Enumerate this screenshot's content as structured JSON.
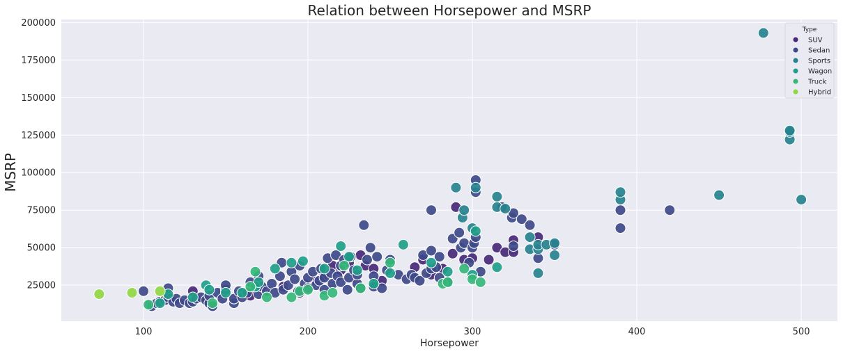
{
  "chart_data": {
    "type": "scatter",
    "title": "Relation between Horsepower and MSRP",
    "xlabel": "Horsepower",
    "ylabel": "MSRP",
    "xlim": [
      50,
      522
    ],
    "ylim": [
      1000,
      202000
    ],
    "x_ticks": [
      100,
      200,
      300,
      400,
      500
    ],
    "y_ticks": [
      25000,
      50000,
      75000,
      100000,
      125000,
      150000,
      175000,
      200000
    ],
    "grid": true,
    "legend": {
      "title": "Type",
      "placement": "top-right",
      "entries": [
        "SUV",
        "Sedan",
        "Sports",
        "Wagon",
        "Truck",
        "Hybrid"
      ]
    },
    "colors": {
      "background": "#eaeaf2",
      "grid": "#ffffff",
      "SUV": "#482878",
      "Sedan": "#3e4989",
      "Sports": "#26828e",
      "Wagon": "#1f9e89",
      "Truck": "#35b779",
      "Hybrid": "#90d743"
    },
    "series": [
      {
        "name": "SUV",
        "points": [
          [
            130,
            21000
          ],
          [
            165,
            18000
          ],
          [
            185,
            24000
          ],
          [
            195,
            20000
          ],
          [
            205,
            28000
          ],
          [
            210,
            32000
          ],
          [
            215,
            38000
          ],
          [
            220,
            35000
          ],
          [
            225,
            40000
          ],
          [
            232,
            45000
          ],
          [
            235,
            38000
          ],
          [
            240,
            36000
          ],
          [
            245,
            28000
          ],
          [
            265,
            37000
          ],
          [
            270,
            42000
          ],
          [
            275,
            32000
          ],
          [
            282,
            36000
          ],
          [
            288,
            46000
          ],
          [
            290,
            77000
          ],
          [
            295,
            42000
          ],
          [
            300,
            43000
          ],
          [
            310,
            42000
          ],
          [
            315,
            50000
          ],
          [
            320,
            47000
          ],
          [
            325,
            47000
          ],
          [
            325,
            55000
          ],
          [
            340,
            57000
          ]
        ]
      },
      {
        "name": "Sedan",
        "points": [
          [
            100,
            21000
          ],
          [
            104,
            12000
          ],
          [
            105,
            11000
          ],
          [
            108,
            13000
          ],
          [
            110,
            14000
          ],
          [
            113,
            15000
          ],
          [
            115,
            17000
          ],
          [
            115,
            23000
          ],
          [
            118,
            14000
          ],
          [
            120,
            16000
          ],
          [
            122,
            13000
          ],
          [
            125,
            15000
          ],
          [
            128,
            13000
          ],
          [
            130,
            14000
          ],
          [
            132,
            16000
          ],
          [
            135,
            17000
          ],
          [
            138,
            15000
          ],
          [
            140,
            13000
          ],
          [
            140,
            18000
          ],
          [
            142,
            11000
          ],
          [
            145,
            20000
          ],
          [
            148,
            16000
          ],
          [
            150,
            22000
          ],
          [
            150,
            25000
          ],
          [
            155,
            13000
          ],
          [
            155,
            16000
          ],
          [
            158,
            21000
          ],
          [
            160,
            17000
          ],
          [
            163,
            20000
          ],
          [
            165,
            27000
          ],
          [
            170,
            19000
          ],
          [
            170,
            31000
          ],
          [
            172,
            24000
          ],
          [
            175,
            21000
          ],
          [
            178,
            26000
          ],
          [
            180,
            20000
          ],
          [
            183,
            31000
          ],
          [
            184,
            40000
          ],
          [
            185,
            22000
          ],
          [
            188,
            25000
          ],
          [
            190,
            34000
          ],
          [
            192,
            29000
          ],
          [
            194,
            21000
          ],
          [
            195,
            38000
          ],
          [
            198,
            26000
          ],
          [
            200,
            30000
          ],
          [
            200,
            23000
          ],
          [
            203,
            34000
          ],
          [
            205,
            25000
          ],
          [
            207,
            28000
          ],
          [
            208,
            36000
          ],
          [
            210,
            30000
          ],
          [
            210,
            22000
          ],
          [
            212,
            43000
          ],
          [
            214,
            33000
          ],
          [
            215,
            26000
          ],
          [
            217,
            45000
          ],
          [
            218,
            31000
          ],
          [
            220,
            38000
          ],
          [
            220,
            27000
          ],
          [
            222,
            42000
          ],
          [
            224,
            22000
          ],
          [
            225,
            30000
          ],
          [
            226,
            44000
          ],
          [
            228,
            35000
          ],
          [
            230,
            26000
          ],
          [
            230,
            32000
          ],
          [
            232,
            23000
          ],
          [
            234,
            65000
          ],
          [
            236,
            42000
          ],
          [
            238,
            50000
          ],
          [
            240,
            31000
          ],
          [
            240,
            24000
          ],
          [
            242,
            44000
          ],
          [
            245,
            23000
          ],
          [
            248,
            35000
          ],
          [
            250,
            42000
          ],
          [
            255,
            32000
          ],
          [
            260,
            29000
          ],
          [
            263,
            32000
          ],
          [
            265,
            30000
          ],
          [
            268,
            28000
          ],
          [
            270,
            45000
          ],
          [
            272,
            33000
          ],
          [
            275,
            36000
          ],
          [
            275,
            48000
          ],
          [
            275,
            75000
          ],
          [
            278,
            37000
          ],
          [
            280,
            30000
          ],
          [
            280,
            44000
          ],
          [
            285,
            27000
          ],
          [
            288,
            56000
          ],
          [
            292,
            60000
          ],
          [
            293,
            50000
          ],
          [
            295,
            53000
          ],
          [
            298,
            40000
          ],
          [
            300,
            50000
          ],
          [
            301,
            53000
          ],
          [
            302,
            57000
          ],
          [
            302,
            87000
          ],
          [
            302,
            95000
          ],
          [
            305,
            34000
          ],
          [
            318,
            77000
          ],
          [
            324,
            70000
          ],
          [
            325,
            73000
          ],
          [
            325,
            51000
          ],
          [
            330,
            69000
          ],
          [
            335,
            65000
          ],
          [
            340,
            43000
          ],
          [
            350,
            52000
          ],
          [
            390,
            63000
          ],
          [
            390,
            75000
          ],
          [
            420,
            75000
          ]
        ]
      },
      {
        "name": "Sports",
        "points": [
          [
            290,
            90000
          ],
          [
            294,
            70000
          ],
          [
            295,
            75000
          ],
          [
            300,
            63000
          ],
          [
            302,
            90000
          ],
          [
            315,
            84000
          ],
          [
            315,
            77000
          ],
          [
            320,
            76000
          ],
          [
            335,
            49000
          ],
          [
            335,
            57000
          ],
          [
            340,
            33000
          ],
          [
            340,
            49000
          ],
          [
            340,
            52000
          ],
          [
            345,
            52000
          ],
          [
            350,
            45000
          ],
          [
            350,
            53000
          ],
          [
            390,
            82000
          ],
          [
            390,
            87000
          ],
          [
            450,
            85000
          ],
          [
            477,
            193000
          ],
          [
            493,
            122000
          ],
          [
            493,
            127000
          ],
          [
            493,
            128000
          ],
          [
            500,
            82000
          ]
        ]
      },
      {
        "name": "Wagon",
        "points": [
          [
            110,
            13000
          ],
          [
            115,
            19000
          ],
          [
            130,
            17000
          ],
          [
            138,
            25000
          ],
          [
            140,
            22000
          ],
          [
            150,
            20000
          ],
          [
            160,
            20000
          ],
          [
            168,
            24000
          ],
          [
            170,
            27000
          ],
          [
            180,
            36000
          ],
          [
            190,
            40000
          ],
          [
            197,
            41000
          ],
          [
            210,
            36000
          ],
          [
            220,
            51000
          ],
          [
            225,
            44000
          ],
          [
            230,
            35000
          ],
          [
            240,
            26000
          ],
          [
            250,
            33000
          ],
          [
            258,
            52000
          ],
          [
            275,
            40000
          ],
          [
            285,
            34000
          ],
          [
            300,
            32000
          ],
          [
            302,
            61000
          ],
          [
            315,
            37000
          ]
        ]
      },
      {
        "name": "Truck",
        "points": [
          [
            103,
            12000
          ],
          [
            142,
            13000
          ],
          [
            165,
            24000
          ],
          [
            168,
            34000
          ],
          [
            175,
            17000
          ],
          [
            190,
            17000
          ],
          [
            195,
            21000
          ],
          [
            200,
            22000
          ],
          [
            210,
            18000
          ],
          [
            215,
            20000
          ],
          [
            222,
            38000
          ],
          [
            232,
            23000
          ],
          [
            250,
            40000
          ],
          [
            282,
            26000
          ],
          [
            285,
            27000
          ],
          [
            295,
            36000
          ],
          [
            300,
            29000
          ],
          [
            305,
            27000
          ]
        ]
      },
      {
        "name": "Hybrid",
        "points": [
          [
            73,
            19000
          ],
          [
            93,
            20000
          ],
          [
            110,
            21000
          ]
        ]
      }
    ]
  }
}
